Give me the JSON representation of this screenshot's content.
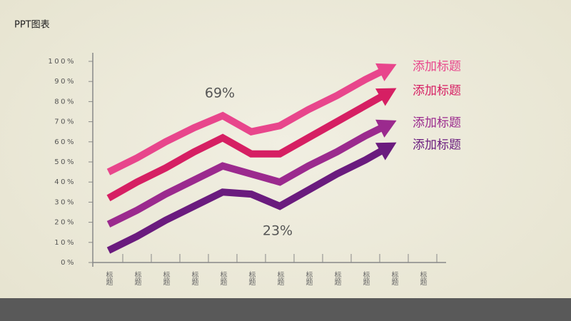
{
  "title": "PPT图表",
  "chart_data": {
    "type": "line",
    "categories": [
      "标题",
      "标题",
      "标题",
      "标题",
      "标题",
      "标题",
      "标题",
      "标题",
      "标题",
      "标题",
      "标题",
      "标题"
    ],
    "series": [
      {
        "name": "添加标题",
        "color": "#e8468c",
        "values": [
          45,
          52,
          60,
          67,
          73,
          65,
          68,
          76,
          83,
          91,
          98,
          null
        ]
      },
      {
        "name": "添加标题",
        "color": "#d61f63",
        "values": [
          32,
          40,
          47,
          55,
          62,
          54,
          54,
          62,
          70,
          78,
          86,
          null
        ]
      },
      {
        "name": "添加标题",
        "color": "#9b2a8e",
        "values": [
          19,
          26,
          34,
          41,
          48,
          44,
          40,
          48,
          55,
          63,
          70,
          null
        ]
      },
      {
        "name": "添加标题",
        "color": "#6a1b7e",
        "values": [
          6,
          13,
          21,
          28,
          35,
          34,
          28,
          36,
          44,
          51,
          59,
          null
        ]
      }
    ],
    "ylim": [
      0,
      100
    ],
    "yticks": [
      {
        "value": 0,
        "label": "0%"
      },
      {
        "value": 10,
        "label": "10%"
      },
      {
        "value": 20,
        "label": "20%"
      },
      {
        "value": 30,
        "label": "30%"
      },
      {
        "value": 40,
        "label": "40%"
      },
      {
        "value": 50,
        "label": "50%"
      },
      {
        "value": 60,
        "label": "60%"
      },
      {
        "value": 70,
        "label": "70%"
      },
      {
        "value": 80,
        "label": "80%"
      },
      {
        "value": 90,
        "label": "90%"
      },
      {
        "value": 100,
        "label": "100%"
      }
    ],
    "legend": "right",
    "annotations": [
      "69%",
      "23%"
    ]
  }
}
